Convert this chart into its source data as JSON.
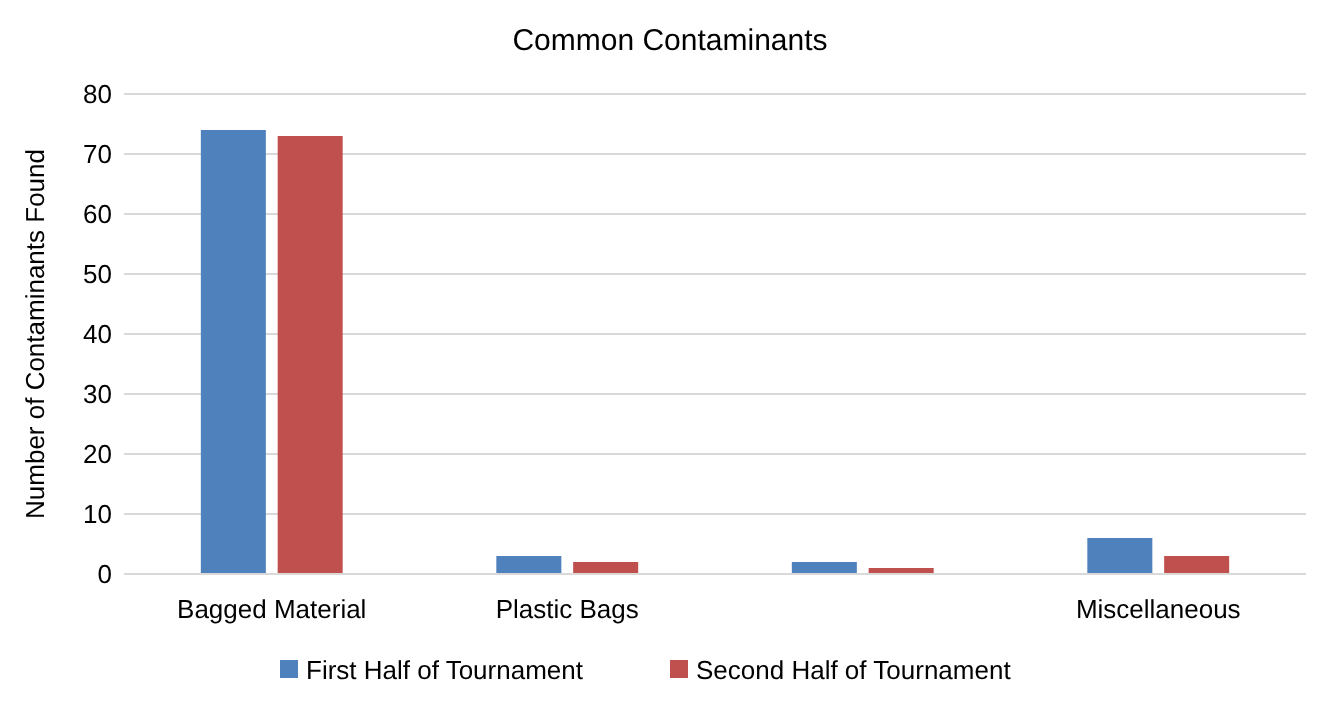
{
  "chart_data": {
    "type": "bar",
    "title": "Common Contaminants",
    "ylabel": "Number of Contaminants Found",
    "categories": [
      "Bagged Material",
      "Plastic Bags",
      null,
      "Miscellaneous"
    ],
    "series": [
      {
        "name": "First Half of Tournament",
        "color": "#4f81bd",
        "values": [
          74,
          3,
          2,
          6
        ]
      },
      {
        "name": "Second Half of Tournament",
        "color": "#c0504d",
        "values": [
          73,
          2,
          1,
          3
        ]
      }
    ],
    "ylim": [
      0,
      80
    ],
    "yticks": [
      0,
      10,
      20,
      30,
      40,
      50,
      60,
      70,
      80
    ],
    "grid": "y",
    "legend": "bottom"
  }
}
